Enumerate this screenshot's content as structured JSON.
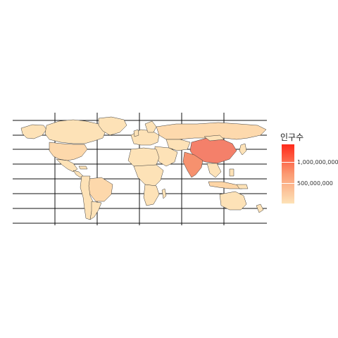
{
  "legend": {
    "title": "인구수",
    "labels": [
      "1,000,000,000",
      "500,000,000"
    ],
    "colors": {
      "low": "#fde2b7",
      "high": "#ff2a1a"
    }
  },
  "countries": [
    {
      "name": "China",
      "value": 1400000000
    },
    {
      "name": "India",
      "value": 1350000000
    },
    {
      "name": "United States",
      "value": 330000000
    },
    {
      "name": "Indonesia",
      "value": 270000000
    },
    {
      "name": "Brazil",
      "value": 210000000
    },
    {
      "name": "Russia",
      "value": 145000000
    },
    {
      "name": "Canada",
      "value": 38000000
    },
    {
      "name": "Australia",
      "value": 25000000
    },
    {
      "name": "Greenland",
      "value": 56000
    }
  ]
}
